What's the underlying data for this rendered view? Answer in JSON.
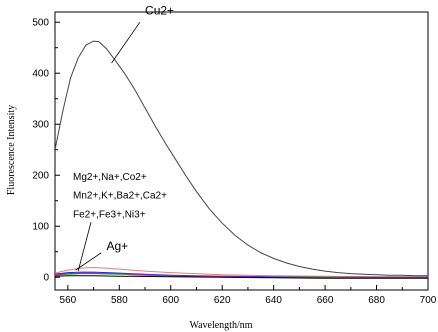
{
  "chart_data": {
    "type": "line",
    "title": "",
    "xlabel": "Wavelength/nm",
    "ylabel": "Fluorescence Intensity",
    "xlim": [
      555,
      700
    ],
    "ylim": [
      -25,
      520
    ],
    "xticks": [
      560,
      580,
      600,
      620,
      640,
      660,
      680,
      700
    ],
    "yticks": [
      0,
      100,
      200,
      300,
      400,
      500
    ],
    "grid": false,
    "series": [
      {
        "name": "Cu2+",
        "color": "#444444",
        "points": [
          [
            555,
            250
          ],
          [
            558,
            325
          ],
          [
            561,
            390
          ],
          [
            564,
            430
          ],
          [
            567,
            455
          ],
          [
            570,
            463
          ],
          [
            572,
            462
          ],
          [
            575,
            448
          ],
          [
            578,
            428
          ],
          [
            582,
            400
          ],
          [
            586,
            368
          ],
          [
            590,
            332
          ],
          [
            594,
            296
          ],
          [
            598,
            262
          ],
          [
            602,
            230
          ],
          [
            606,
            198
          ],
          [
            610,
            168
          ],
          [
            615,
            134
          ],
          [
            620,
            106
          ],
          [
            625,
            82
          ],
          [
            630,
            63
          ],
          [
            635,
            48
          ],
          [
            640,
            37
          ],
          [
            645,
            28
          ],
          [
            650,
            21
          ],
          [
            655,
            16
          ],
          [
            660,
            12
          ],
          [
            665,
            9
          ],
          [
            670,
            7
          ],
          [
            675,
            6
          ],
          [
            680,
            5
          ],
          [
            685,
            4
          ],
          [
            690,
            4
          ],
          [
            695,
            3
          ],
          [
            700,
            3
          ]
        ]
      },
      {
        "name": "Ag+",
        "color": "#e08080",
        "points": [
          [
            555,
            8
          ],
          [
            560,
            14
          ],
          [
            565,
            18
          ],
          [
            570,
            19
          ],
          [
            575,
            18
          ],
          [
            580,
            16
          ],
          [
            590,
            12
          ],
          [
            600,
            9
          ],
          [
            620,
            5
          ],
          [
            640,
            3
          ],
          [
            660,
            2
          ],
          [
            680,
            1
          ],
          [
            700,
            1
          ]
        ]
      },
      {
        "name": "Mg2+,Na+,Co2+",
        "color": "#2222cc",
        "points": [
          [
            555,
            6
          ],
          [
            560,
            9
          ],
          [
            565,
            10
          ],
          [
            570,
            10
          ],
          [
            580,
            8
          ],
          [
            590,
            6
          ],
          [
            600,
            4
          ],
          [
            620,
            2
          ],
          [
            640,
            1
          ],
          [
            660,
            0
          ],
          [
            680,
            0
          ],
          [
            700,
            0
          ]
        ]
      },
      {
        "name": "Mn2+,K+,Ba2+,Ca2+",
        "color": "#22aa22",
        "points": [
          [
            555,
            4
          ],
          [
            560,
            6
          ],
          [
            565,
            7
          ],
          [
            570,
            7
          ],
          [
            580,
            6
          ],
          [
            590,
            4
          ],
          [
            600,
            3
          ],
          [
            620,
            1
          ],
          [
            640,
            0
          ],
          [
            660,
            0
          ],
          [
            680,
            -1
          ],
          [
            700,
            -1
          ]
        ]
      },
      {
        "name": "Fe2+,Fe3+,Ni3+",
        "color": "#aa22aa",
        "points": [
          [
            555,
            5
          ],
          [
            560,
            7
          ],
          [
            565,
            8
          ],
          [
            570,
            8
          ],
          [
            580,
            7
          ],
          [
            590,
            5
          ],
          [
            600,
            3
          ],
          [
            620,
            1
          ],
          [
            640,
            0
          ],
          [
            660,
            -1
          ],
          [
            680,
            -1
          ],
          [
            700,
            -1
          ]
        ]
      },
      {
        "name": "",
        "color": "#000000",
        "points": [
          [
            555,
            2
          ],
          [
            560,
            3
          ],
          [
            570,
            3
          ],
          [
            580,
            2
          ],
          [
            600,
            1
          ],
          [
            620,
            0
          ],
          [
            640,
            -1
          ],
          [
            660,
            -2
          ],
          [
            680,
            -2
          ],
          [
            700,
            -2
          ]
        ]
      }
    ],
    "annotations": [
      {
        "text": "Cu2+",
        "x": 590,
        "y": 515,
        "size": 12,
        "leader": [
          [
            588,
            500
          ],
          [
            577,
            420
          ]
        ]
      },
      {
        "text": "Mg2+,Na+,Co2+",
        "x": 562,
        "y": 191,
        "size": 10
      },
      {
        "text": "Mn2+,K+,Ba2+,Ca2+",
        "x": 562,
        "y": 154,
        "size": 10
      },
      {
        "text": "Fe2+,Fe3+,Ni3+",
        "x": 562,
        "y": 117,
        "size": 10,
        "leader": [
          [
            569,
            108
          ],
          [
            564,
            12
          ]
        ]
      },
      {
        "text": "Ag+",
        "x": 575,
        "y": 53,
        "size": 12,
        "leader": [
          [
            573,
            48
          ],
          [
            563,
            14
          ]
        ]
      }
    ]
  }
}
